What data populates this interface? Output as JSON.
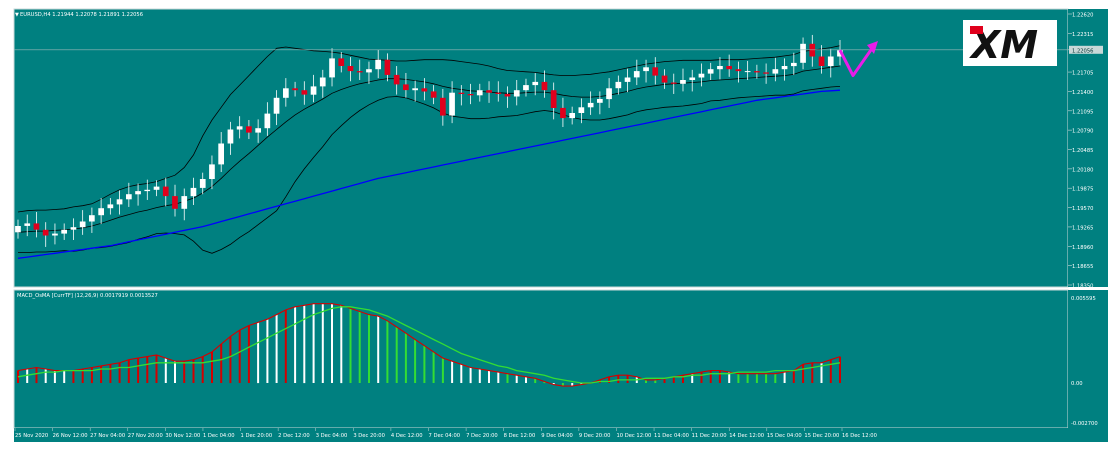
{
  "colors": {
    "background": "#008080",
    "frame": "#c8d8d8",
    "bull_candle": "#ffffff",
    "bear_candle": "#e0001c",
    "wick": "#ffffff",
    "bollinger": "#000000",
    "moving_average": "#0000ff",
    "macd_line": "#d40000",
    "signal_line": "#33dd33",
    "hist_rising_pos": "#d40000",
    "hist_falling_pos": "#ffffff",
    "hist_falling_neg": "#33dd33",
    "hist_rising_neg": "#ffffff",
    "arrow": "#e81ce8",
    "text": "#ffffff"
  },
  "logo": {
    "text": "XM"
  },
  "chart_data": [
    {
      "type": "candlestick",
      "title": "EURUSD,H4  1.21944 1.22078 1.21891 1.22056",
      "timeframe": "H4",
      "ylim": [
        1.1835,
        1.2262
      ],
      "y_ticks": [
        "1.22620",
        "1.22315",
        "1.22056",
        "1.21705",
        "1.21400",
        "1.21095",
        "1.20790",
        "1.20485",
        "1.20180",
        "1.19875",
        "1.19570",
        "1.19265",
        "1.18960",
        "1.18655",
        "1.18350"
      ],
      "y_tick_values": [
        1.2262,
        1.22315,
        1.22056,
        1.21705,
        1.214,
        1.21095,
        1.2079,
        1.20485,
        1.2018,
        1.19875,
        1.1957,
        1.19265,
        1.1896,
        1.18655,
        1.1835
      ],
      "current_price": 1.22056,
      "closes": [
        1.1928,
        1.1932,
        1.1922,
        1.1913,
        1.1916,
        1.1922,
        1.1926,
        1.1935,
        1.1945,
        1.1956,
        1.1962,
        1.197,
        1.1978,
        1.1983,
        1.1985,
        1.199,
        1.1975,
        1.1955,
        1.1975,
        1.1988,
        1.2002,
        1.2025,
        1.2058,
        1.208,
        1.2085,
        1.2075,
        1.2082,
        1.2105,
        1.213,
        1.2145,
        1.2142,
        1.2135,
        1.2148,
        1.2162,
        1.2192,
        1.218,
        1.2172,
        1.217,
        1.2175,
        1.219,
        1.2166,
        1.2151,
        1.2142,
        1.2145,
        1.214,
        1.213,
        1.2102,
        1.2138,
        1.2136,
        1.2134,
        1.2142,
        1.2138,
        1.2136,
        1.2132,
        1.2142,
        1.215,
        1.2155,
        1.2142,
        1.2114,
        1.2098,
        1.2106,
        1.2115,
        1.2122,
        1.2128,
        1.2145,
        1.2155,
        1.2162,
        1.2172,
        1.2178,
        1.2165,
        1.2154,
        1.2152,
        1.2158,
        1.2162,
        1.2168,
        1.2175,
        1.218,
        1.2175,
        1.2172,
        1.2172,
        1.217,
        1.2168,
        1.2175,
        1.218,
        1.2185,
        1.2215,
        1.2195,
        1.218,
        1.2195,
        1.2205
      ],
      "opens_start": 1.1918,
      "bands_upper": [
        1.195,
        1.1952,
        1.1953,
        1.1953,
        1.1954,
        1.1955,
        1.1958,
        1.196,
        1.1963,
        1.197,
        1.1978,
        1.1985,
        1.199,
        1.1993,
        1.1995,
        1.1998,
        1.2003,
        1.2008,
        1.202,
        1.204,
        1.207,
        1.2095,
        1.2115,
        1.2135,
        1.215,
        1.2165,
        1.218,
        1.2195,
        1.2208,
        1.221,
        1.2208,
        1.2206,
        1.2204,
        1.2203,
        1.2202,
        1.22,
        1.2197,
        1.2194,
        1.2191,
        1.219,
        1.2189,
        1.2188,
        1.2188,
        1.2189,
        1.219,
        1.219,
        1.219,
        1.2189,
        1.2187,
        1.2185,
        1.2183,
        1.218,
        1.2176,
        1.2173,
        1.2172,
        1.2171,
        1.217,
        1.2168,
        1.2166,
        1.2165,
        1.2165,
        1.2166,
        1.2167,
        1.2169,
        1.2171,
        1.2174,
        1.2177,
        1.218,
        1.2183,
        1.2185,
        1.2187,
        1.2188,
        1.2189,
        1.2189,
        1.2189,
        1.2189,
        1.219,
        1.219,
        1.219,
        1.2191,
        1.2192,
        1.2193,
        1.2194,
        1.2196,
        1.2198,
        1.2203,
        1.2205,
        1.2207,
        1.2209,
        1.2212
      ],
      "bands_middle": [
        1.1918,
        1.1919,
        1.192,
        1.192,
        1.1921,
        1.1922,
        1.1923,
        1.1925,
        1.1928,
        1.1932,
        1.1937,
        1.1942,
        1.1946,
        1.195,
        1.1953,
        1.1957,
        1.196,
        1.1962,
        1.1967,
        1.1972,
        1.198,
        1.199,
        1.2003,
        1.2017,
        1.203,
        1.2042,
        1.2055,
        1.2068,
        1.208,
        1.2092,
        1.2103,
        1.2112,
        1.212,
        1.2128,
        1.2137,
        1.2143,
        1.2148,
        1.2152,
        1.2155,
        1.2158,
        1.216,
        1.216,
        1.2159,
        1.2157,
        1.2155,
        1.2152,
        1.2148,
        1.2145,
        1.2143,
        1.2141,
        1.214,
        1.2139,
        1.2138,
        1.2137,
        1.2137,
        1.2138,
        1.2139,
        1.2139,
        1.2137,
        1.2134,
        1.2132,
        1.2131,
        1.2131,
        1.2132,
        1.2134,
        1.2137,
        1.214,
        1.2144,
        1.2147,
        1.2149,
        1.2151,
        1.2152,
        1.2153,
        1.2154,
        1.2155,
        1.2157,
        1.2158,
        1.2159,
        1.216,
        1.2161,
        1.2162,
        1.2163,
        1.2164,
        1.2165,
        1.2167,
        1.2172,
        1.2174,
        1.2176,
        1.2178,
        1.218
      ],
      "bands_lower": [
        1.1886,
        1.1886,
        1.1887,
        1.1887,
        1.1888,
        1.1889,
        1.1888,
        1.189,
        1.1893,
        1.1894,
        1.1896,
        1.1899,
        1.1902,
        1.1907,
        1.1911,
        1.1916,
        1.1917,
        1.1916,
        1.1914,
        1.1904,
        1.189,
        1.1885,
        1.1891,
        1.1899,
        1.191,
        1.1919,
        1.193,
        1.1941,
        1.1952,
        1.1974,
        1.1998,
        1.2018,
        1.2036,
        1.2053,
        1.2072,
        1.2086,
        1.2099,
        1.211,
        1.2119,
        1.2126,
        1.2131,
        1.2132,
        1.213,
        1.2125,
        1.212,
        1.2114,
        1.2106,
        1.2101,
        1.2099,
        1.2097,
        1.2097,
        1.2098,
        1.21,
        1.2101,
        1.2102,
        1.2105,
        1.2108,
        1.211,
        1.2108,
        1.2103,
        1.2099,
        1.2096,
        1.2095,
        1.2095,
        1.2097,
        1.21,
        1.2103,
        1.2108,
        1.2111,
        1.2113,
        1.2115,
        1.2116,
        1.2117,
        1.2119,
        1.2121,
        1.2125,
        1.2126,
        1.2128,
        1.213,
        1.2131,
        1.2132,
        1.2133,
        1.2134,
        1.2134,
        1.2136,
        1.2141,
        1.2143,
        1.2145,
        1.2147,
        1.2148
      ],
      "moving_average": [
        1.1877,
        1.1879,
        1.1881,
        1.1883,
        1.1885,
        1.1887,
        1.1889,
        1.1891,
        1.1893,
        1.1895,
        1.1897,
        1.19,
        1.1903,
        1.1906,
        1.1909,
        1.1912,
        1.1915,
        1.1918,
        1.1921,
        1.1924,
        1.1927,
        1.1931,
        1.1935,
        1.1939,
        1.1943,
        1.1947,
        1.1951,
        1.1955,
        1.1959,
        1.1963,
        1.1967,
        1.1971,
        1.1975,
        1.1979,
        1.1983,
        1.1987,
        1.1991,
        1.1995,
        1.1999,
        1.2003,
        1.2006,
        1.2009,
        1.2012,
        1.2015,
        1.2018,
        1.2021,
        1.2024,
        1.2027,
        1.203,
        1.2033,
        1.2036,
        1.2039,
        1.2042,
        1.2045,
        1.2048,
        1.2051,
        1.2054,
        1.2057,
        1.206,
        1.2063,
        1.2066,
        1.2069,
        1.2072,
        1.2075,
        1.2078,
        1.2081,
        1.2084,
        1.2087,
        1.209,
        1.2093,
        1.2096,
        1.2099,
        1.2102,
        1.2105,
        1.2108,
        1.2111,
        1.2114,
        1.2117,
        1.212,
        1.2123,
        1.2126,
        1.2128,
        1.213,
        1.2132,
        1.2134,
        1.2136,
        1.2138,
        1.214,
        1.2141,
        1.2142
      ],
      "forecast_arrow": [
        1.2205,
        1.2165,
        1.221
      ],
      "x_labels": [
        "25 Nov 2020",
        "26 Nov 12:00",
        "27 Nov 04:00",
        "27 Nov 20:00",
        "30 Nov 12:00",
        "1 Dec 04:00",
        "1 Dec 20:00",
        "2 Dec 12:00",
        "3 Dec 04:00",
        "3 Dec 20:00",
        "4 Dec 12:00",
        "7 Dec 04:00",
        "7 Dec 20:00",
        "8 Dec 12:00",
        "9 Dec 04:00",
        "9 Dec 20:00",
        "10 Dec 12:00",
        "11 Dec 04:00",
        "11 Dec 20:00",
        "14 Dec 12:00",
        "15 Dec 04:00",
        "15 Dec 20:00",
        "16 Dec 12:00"
      ]
    },
    {
      "type": "macd",
      "title": "MACD_OsMA [CurrTF] (12,26,9) 0.0017919 0.0013527",
      "params": "(12,26,9)",
      "macd_value": 0.0017919,
      "signal_value": 0.0013527,
      "y_ticks": [
        "0.005595",
        "0.00",
        "-0.002700"
      ],
      "y_tick_values": [
        0.005595,
        0.0,
        -0.0027
      ],
      "ylim": [
        -0.0027,
        0.005595
      ],
      "macd": [
        0.0008,
        0.0009,
        0.001,
        0.0009,
        0.0008,
        0.0008,
        0.0008,
        0.0009,
        0.001,
        0.0011,
        0.0012,
        0.0013,
        0.0015,
        0.0016,
        0.0017,
        0.0018,
        0.0016,
        0.0014,
        0.0014,
        0.0015,
        0.0017,
        0.002,
        0.0025,
        0.003,
        0.0034,
        0.0037,
        0.0039,
        0.0041,
        0.0044,
        0.0047,
        0.0049,
        0.005,
        0.0051,
        0.0051,
        0.0051,
        0.005,
        0.0048,
        0.0046,
        0.0044,
        0.0043,
        0.004,
        0.0036,
        0.0032,
        0.0028,
        0.0024,
        0.002,
        0.0016,
        0.0014,
        0.0012,
        0.001,
        0.0009,
        0.0008,
        0.0007,
        0.0006,
        0.0005,
        0.0004,
        0.0003,
        0.0001,
        -0.0001,
        -0.0002,
        -0.0002,
        -0.0001,
        0.0,
        0.0002,
        0.0004,
        0.0005,
        0.0005,
        0.0004,
        0.0002,
        0.0002,
        0.0003,
        0.0004,
        0.0005,
        0.0006,
        0.0007,
        0.0008,
        0.0008,
        0.0007,
        0.0006,
        0.0006,
        0.0006,
        0.0006,
        0.0006,
        0.0007,
        0.0008,
        0.0012,
        0.0013,
        0.0013,
        0.0015,
        0.0017
      ],
      "signal": [
        0.0004,
        0.0005,
        0.0006,
        0.0007,
        0.0007,
        0.0008,
        0.0008,
        0.0008,
        0.0008,
        0.0009,
        0.0009,
        0.001,
        0.001,
        0.0011,
        0.0012,
        0.0013,
        0.0013,
        0.0013,
        0.0013,
        0.0013,
        0.0013,
        0.0014,
        0.0015,
        0.0017,
        0.002,
        0.0023,
        0.0026,
        0.0029,
        0.0032,
        0.0035,
        0.0038,
        0.0041,
        0.0044,
        0.0046,
        0.0048,
        0.0049,
        0.0049,
        0.0048,
        0.0047,
        0.0045,
        0.0043,
        0.004,
        0.0037,
        0.0034,
        0.0031,
        0.0028,
        0.0025,
        0.0022,
        0.0019,
        0.0017,
        0.0015,
        0.0013,
        0.0011,
        0.001,
        0.0008,
        0.0007,
        0.0006,
        0.0005,
        0.0003,
        0.0002,
        0.0001,
        0.0,
        0.0,
        0.0001,
        0.0001,
        0.0002,
        0.0002,
        0.0002,
        0.0003,
        0.0003,
        0.0003,
        0.0004,
        0.0004,
        0.0005,
        0.0005,
        0.0006,
        0.0006,
        0.0006,
        0.0007,
        0.0007,
        0.0007,
        0.0007,
        0.0008,
        0.0008,
        0.0008,
        0.0009,
        0.001,
        0.0011,
        0.0012,
        0.0013
      ]
    }
  ]
}
